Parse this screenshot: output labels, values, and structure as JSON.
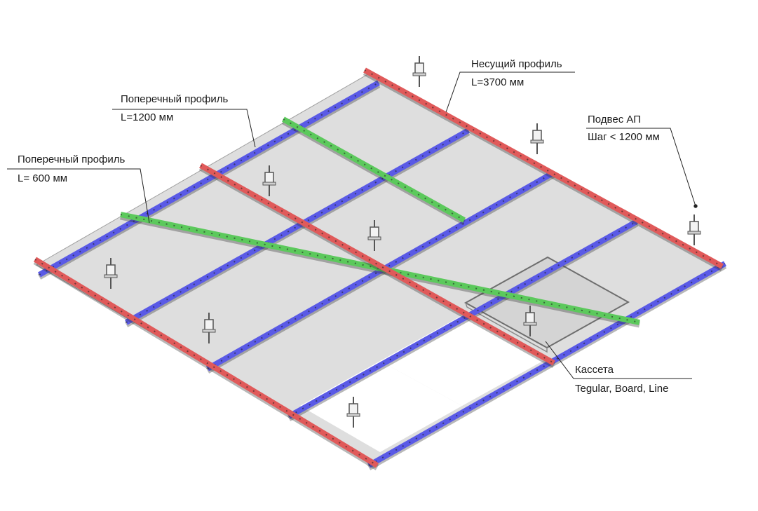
{
  "labels": {
    "main_profile": {
      "title": "Несущий профиль",
      "value": "L=3700 мм"
    },
    "cross_profile_1200": {
      "title": "Поперечный профиль",
      "value": "L=1200 мм"
    },
    "cross_profile_600": {
      "title": "Поперечный профиль",
      "value": "L= 600 мм"
    },
    "hanger": {
      "title": "Подвес АП",
      "value": "Шаг < 1200 мм"
    },
    "cassette": {
      "title": "Кассета",
      "value": "Tegular, Board, Line"
    }
  },
  "colors": {
    "main_profile": "#e05a5a",
    "cross_1200": "#5a5ae6",
    "cross_600": "#5cc95c",
    "panel": "#dedede",
    "panel_edge": "#9a9a9a",
    "hanger": "#555555",
    "leader": "#222222"
  }
}
